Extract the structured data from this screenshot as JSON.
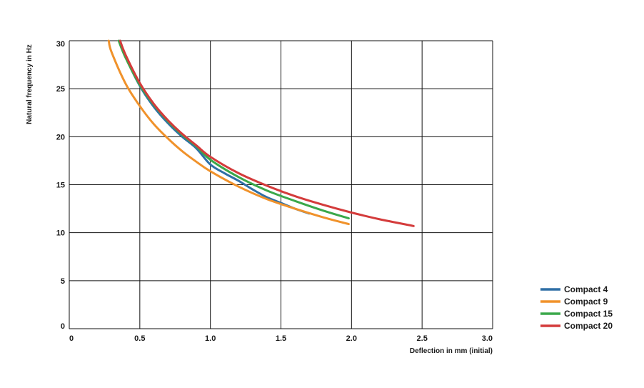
{
  "chart_data": {
    "type": "line",
    "xlabel": "Deflection in mm (initial)",
    "ylabel": "Natural frequency in Hz",
    "xlim": [
      0,
      3.0
    ],
    "ylim": [
      0,
      30
    ],
    "x_ticks": [
      "0",
      "0.5",
      "1.0",
      "1.5",
      "2.0",
      "2.5",
      "3.0"
    ],
    "y_ticks": [
      "0",
      "5",
      "10",
      "15",
      "20",
      "25",
      "30"
    ],
    "grid": true,
    "legend_position": "bottom-right, outside plot",
    "series": [
      {
        "name": "Compact 4",
        "color": "#2f6fa6",
        "x": [
          0.36,
          0.4,
          0.5,
          0.6,
          0.7,
          0.8,
          0.9,
          1.0,
          1.1,
          1.2,
          1.3,
          1.4,
          1.5,
          1.6,
          1.7
        ],
        "y": [
          30.0,
          28.3,
          25.3,
          23.1,
          21.4,
          20.0,
          18.8,
          17.1,
          16.2,
          15.4,
          14.5,
          13.7,
          13.1,
          12.5,
          12.0
        ]
      },
      {
        "name": "Compact 9",
        "color": "#f0922b",
        "x": [
          0.28,
          0.3,
          0.4,
          0.5,
          0.6,
          0.7,
          0.8,
          0.9,
          1.0,
          1.2,
          1.4,
          1.6,
          1.8,
          1.98
        ],
        "y": [
          30.0,
          28.8,
          25.5,
          23.2,
          21.3,
          19.8,
          18.5,
          17.4,
          16.4,
          14.8,
          13.5,
          12.5,
          11.6,
          10.9
        ]
      },
      {
        "name": "Compact 15",
        "color": "#3aa84a",
        "x": [
          0.35,
          0.4,
          0.5,
          0.6,
          0.7,
          0.8,
          0.9,
          1.0,
          1.2,
          1.4,
          1.6,
          1.8,
          1.98
        ],
        "y": [
          30.0,
          28.2,
          25.4,
          23.3,
          21.6,
          20.2,
          19.0,
          17.6,
          15.8,
          14.4,
          13.3,
          12.3,
          11.5
        ]
      },
      {
        "name": "Compact 20",
        "color": "#d43b3b",
        "x": [
          0.36,
          0.4,
          0.5,
          0.6,
          0.7,
          0.8,
          0.9,
          1.0,
          1.2,
          1.4,
          1.6,
          1.8,
          2.0,
          2.2,
          2.44
        ],
        "y": [
          30.0,
          28.5,
          25.6,
          23.4,
          21.7,
          20.3,
          19.1,
          17.9,
          16.2,
          14.9,
          13.8,
          12.9,
          12.1,
          11.4,
          10.7
        ]
      }
    ]
  }
}
